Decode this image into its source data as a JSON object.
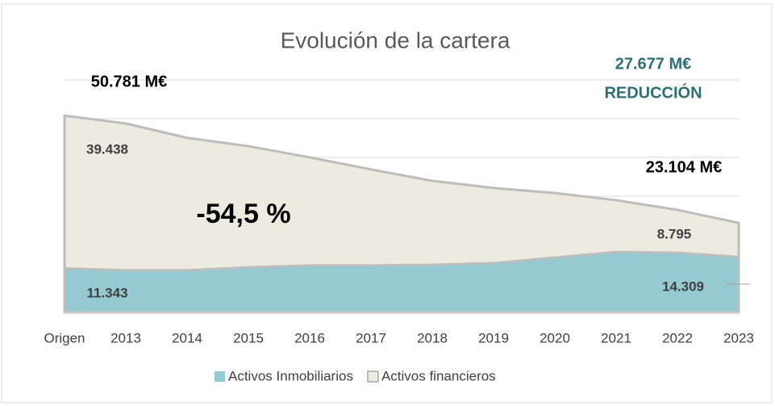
{
  "chart_data": {
    "type": "stacked_area",
    "title": "Evolución de la cartera",
    "categories": [
      "Origen",
      "2013",
      "2014",
      "2015",
      "2016",
      "2017",
      "2018",
      "2019",
      "2020",
      "2021",
      "2022",
      "2023"
    ],
    "series": [
      {
        "name": "Activos Inmobiliarios",
        "color": "#96cad2",
        "values": [
          11343,
          10850,
          10850,
          11650,
          12100,
          12100,
          12300,
          12700,
          14150,
          15600,
          15400,
          14309
        ],
        "value_labels": {
          "0": "11.343",
          "11": "14.309"
        }
      },
      {
        "name": "Activos financieros",
        "color": "#edeae0",
        "values": [
          39438,
          37900,
          34200,
          31250,
          27900,
          24800,
          21650,
          19400,
          16650,
          13350,
          11050,
          8795
        ],
        "value_labels": {
          "0": "39.438",
          "11": "8.795"
        }
      }
    ],
    "ylim": [
      0,
      60000
    ],
    "yticks": [
      0,
      10000,
      20000,
      30000,
      40000,
      50000,
      60000
    ],
    "grid": true,
    "y_tick_labels_visible": false,
    "legend": "bottom",
    "annotations": [
      "50.781 M€",
      "23.104 M€",
      "27.677 M€",
      "REDUCCIÓN",
      "-54,5 %"
    ]
  }
}
